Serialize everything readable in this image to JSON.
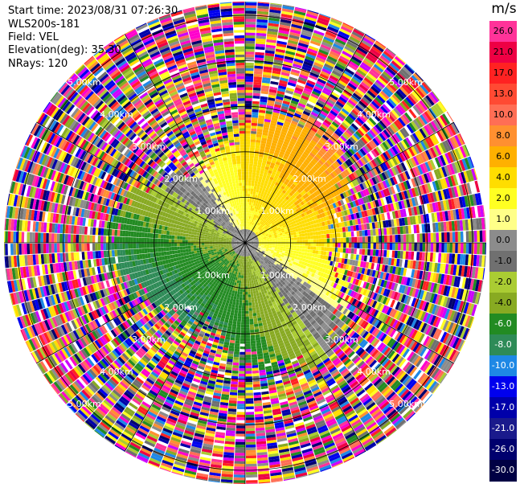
{
  "header": {
    "start_time": "Start time: 2023/08/31 07:26:30",
    "station": "WLS200s-181",
    "field": "Field: VEL",
    "elevation": "Elevation(deg): 35.30",
    "nrays": "NRays: 120"
  },
  "colorbar": {
    "unit": "m/s",
    "levels": [
      {
        "label": "26.0",
        "color": "#ff3399"
      },
      {
        "label": "21.0",
        "color": "#ee0044"
      },
      {
        "label": "17.0",
        "color": "#ff2222"
      },
      {
        "label": "13.0",
        "color": "#ff4a33"
      },
      {
        "label": "10.0",
        "color": "#ff6e55"
      },
      {
        "label": "8.0",
        "color": "#ff9030"
      },
      {
        "label": "6.0",
        "color": "#ffb000"
      },
      {
        "label": "4.0",
        "color": "#ffdd00"
      },
      {
        "label": "2.0",
        "color": "#ffff22"
      },
      {
        "label": "1.0",
        "color": "#ffff88"
      },
      {
        "label": "0.0",
        "color": "#8c8c8c"
      },
      {
        "label": "-1.0",
        "color": "#707070"
      },
      {
        "label": "-2.0",
        "color": "#aacc33"
      },
      {
        "label": "-4.0",
        "color": "#88aa22"
      },
      {
        "label": "-6.0",
        "color": "#228b22"
      },
      {
        "label": "-8.0",
        "color": "#2e8b57"
      },
      {
        "label": "-10.0",
        "color": "#1e88e5"
      },
      {
        "label": "-13.0",
        "color": "#0000ee"
      },
      {
        "label": "-17.0",
        "color": "#0000aa"
      },
      {
        "label": "-21.0",
        "color": "#1a1a8c"
      },
      {
        "label": "-26.0",
        "color": "#00006e"
      },
      {
        "label": "-30.0",
        "color": "#000044"
      }
    ]
  },
  "chart_data": {
    "type": "heatmap",
    "projection": "polar (PPI)",
    "field": "VEL",
    "units": "m/s",
    "nrays": 120,
    "range_rings_km": [
      1.0,
      2.0,
      3.0,
      4.0,
      5.0
    ],
    "ring_labels": [
      "1.00km",
      "2.00km",
      "3.00km",
      "4.00km",
      "5.00km"
    ],
    "max_range_km": 5.3,
    "clean_region_km": 2.6,
    "pattern": "dipole: positive velocities (yellow/orange) to the north-east, negative velocities (green) to the south-west, grey near-zero band, noisy multicolor returns beyond ~2.6 km",
    "color_scale_min": -30.0,
    "color_scale_max": 26.0
  }
}
